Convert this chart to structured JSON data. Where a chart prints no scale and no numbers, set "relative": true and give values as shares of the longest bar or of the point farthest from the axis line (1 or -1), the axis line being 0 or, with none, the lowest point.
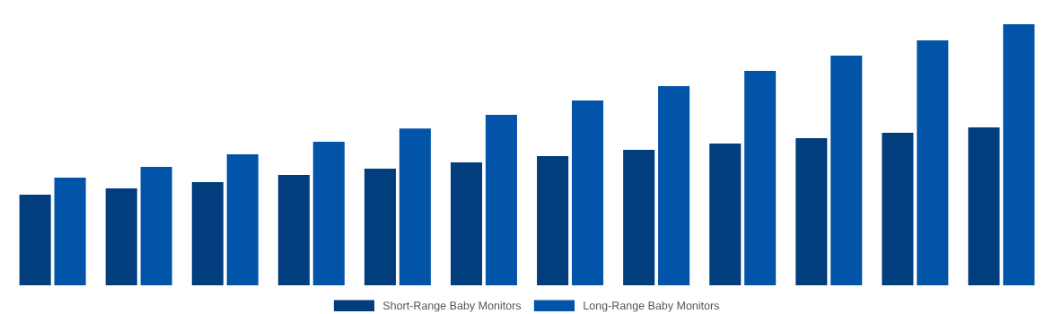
{
  "chart_data": {
    "type": "bar",
    "relative": true,
    "categories": [
      null,
      null,
      null,
      null,
      null,
      null,
      null,
      null,
      null,
      null,
      null,
      null
    ],
    "series": [
      {
        "name": "Short-Range Baby Monitors",
        "color": "#023e7d",
        "values": [
          0.347,
          0.371,
          0.395,
          0.423,
          0.447,
          0.471,
          0.495,
          0.519,
          0.543,
          0.564,
          0.584,
          0.605
        ]
      },
      {
        "name": "Long-Range Baby Monitors",
        "color": "#0254a8",
        "values": [
          0.412,
          0.454,
          0.502,
          0.55,
          0.601,
          0.653,
          0.708,
          0.763,
          0.821,
          0.88,
          0.938,
          1.0
        ]
      }
    ],
    "legend": "bottom",
    "grid": false
  }
}
